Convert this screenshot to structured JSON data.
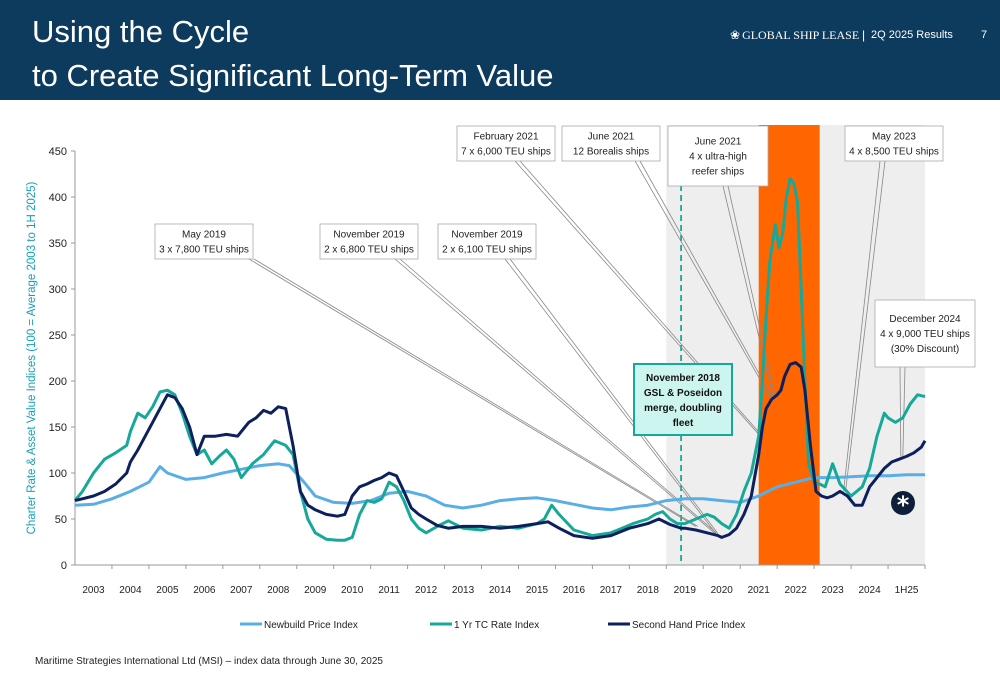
{
  "header": {
    "title_line1": "Using the Cycle",
    "title_line2": "to Create Significant Long-Term Value",
    "brand": "GLOBAL SHIP LEASE",
    "brand_icon": "ship-lease-logo-icon",
    "separator": "|",
    "results_label": "2Q 2025 Results",
    "page_number": "7"
  },
  "colors": {
    "header_bg": "#0d3b5e",
    "newbuild": "#5aaee6",
    "tc_rate": "#16a898",
    "second_hand": "#0d1f5c",
    "highlight": "#ff6600",
    "shade": "#eeeeee",
    "merger_box": "#ccf5ef",
    "merger_border": "#16a898"
  },
  "chart_data": {
    "type": "line",
    "ylabel": "Charter Rate & Asset Value Indices (100 = Average 2003 to 1H 2025)",
    "ylim": [
      0,
      450
    ],
    "yticks": [
      0,
      50,
      100,
      150,
      200,
      250,
      300,
      350,
      400,
      450
    ],
    "xlim": [
      2002.5,
      2025.5
    ],
    "xtick_labels": [
      "2003",
      "2004",
      "2005",
      "2006",
      "2007",
      "2008",
      "2009",
      "2010",
      "2011",
      "2012",
      "2013",
      "2014",
      "2015",
      "2016",
      "2017",
      "2018",
      "2019",
      "2020",
      "2021",
      "2022",
      "2023",
      "2024",
      "1H25"
    ],
    "shaded_region": [
      2018.5,
      2025.5
    ],
    "highlight_region": [
      2021.0,
      2022.65
    ],
    "merger_date": 2018.9,
    "series": [
      {
        "name": "Newbuild Price Index",
        "x": [
          2002.5,
          2003,
          2003.5,
          2004,
          2004.5,
          2004.8,
          2005,
          2005.5,
          2006,
          2006.5,
          2007,
          2007.5,
          2008,
          2008.3,
          2008.7,
          2009,
          2009.5,
          2010,
          2010.5,
          2011,
          2011.5,
          2012,
          2012.5,
          2013,
          2013.5,
          2014,
          2014.5,
          2015,
          2015.5,
          2016,
          2016.5,
          2017,
          2017.5,
          2018,
          2018.5,
          2019,
          2019.5,
          2020,
          2020.5,
          2021,
          2021.5,
          2022,
          2022.5,
          2023,
          2023.5,
          2024,
          2024.5,
          2025,
          2025.5
        ],
        "y": [
          65,
          66,
          72,
          80,
          90,
          107,
          100,
          93,
          95,
          100,
          104,
          108,
          110,
          108,
          90,
          75,
          68,
          67,
          70,
          78,
          80,
          75,
          65,
          62,
          65,
          70,
          72,
          73,
          70,
          66,
          62,
          60,
          63,
          65,
          70,
          72,
          72,
          70,
          68,
          75,
          85,
          90,
          95,
          95,
          96,
          97,
          97,
          98,
          98
        ]
      },
      {
        "name": "1 Yr TC Rate Index",
        "x": [
          2002.5,
          2002.7,
          2003,
          2003.3,
          2003.6,
          2003.9,
          2004,
          2004.2,
          2004.4,
          2004.6,
          2004.8,
          2005,
          2005.2,
          2005.4,
          2005.6,
          2005.8,
          2006,
          2006.2,
          2006.4,
          2006.6,
          2006.8,
          2007,
          2007.3,
          2007.6,
          2007.9,
          2008.2,
          2008.4,
          2008.6,
          2008.8,
          2009,
          2009.3,
          2009.6,
          2009.8,
          2010,
          2010.2,
          2010.4,
          2010.6,
          2010.8,
          2011,
          2011.2,
          2011.4,
          2011.6,
          2011.8,
          2012,
          2012.3,
          2012.6,
          2013,
          2013.5,
          2014,
          2014.5,
          2015,
          2015.2,
          2015.4,
          2015.6,
          2016,
          2016.5,
          2017,
          2017.3,
          2017.6,
          2018,
          2018.2,
          2018.4,
          2018.6,
          2018.8,
          2019,
          2019.3,
          2019.6,
          2019.8,
          2020,
          2020.2,
          2020.4,
          2020.6,
          2020.8,
          2021,
          2021.1,
          2021.2,
          2021.3,
          2021.45,
          2021.55,
          2021.65,
          2021.75,
          2021.85,
          2021.95,
          2022.05,
          2022.15,
          2022.25,
          2022.35,
          2022.5,
          2022.65,
          2022.8,
          2023,
          2023.2,
          2023.5,
          2023.8,
          2024,
          2024.2,
          2024.4,
          2024.5,
          2024.7,
          2024.9,
          2025.1,
          2025.3,
          2025.5
        ],
        "y": [
          70,
          80,
          100,
          115,
          122,
          130,
          145,
          165,
          160,
          172,
          188,
          190,
          185,
          165,
          140,
          120,
          125,
          110,
          118,
          125,
          115,
          95,
          110,
          120,
          135,
          130,
          120,
          80,
          50,
          35,
          28,
          27,
          27,
          30,
          55,
          70,
          68,
          72,
          90,
          85,
          70,
          50,
          40,
          35,
          42,
          48,
          40,
          38,
          42,
          40,
          45,
          50,
          65,
          55,
          38,
          32,
          35,
          40,
          45,
          50,
          55,
          58,
          50,
          45,
          45,
          50,
          55,
          52,
          45,
          40,
          55,
          80,
          100,
          140,
          200,
          270,
          330,
          370,
          345,
          360,
          400,
          420,
          415,
          395,
          300,
          200,
          110,
          90,
          88,
          85,
          110,
          88,
          75,
          85,
          105,
          140,
          165,
          160,
          155,
          160,
          175,
          185,
          183
        ]
      },
      {
        "name": "Second Hand Price Index",
        "x": [
          2002.5,
          2002.7,
          2003,
          2003.3,
          2003.6,
          2003.9,
          2004,
          2004.2,
          2004.4,
          2004.6,
          2004.8,
          2005,
          2005.2,
          2005.4,
          2005.6,
          2005.8,
          2006,
          2006.3,
          2006.6,
          2006.9,
          2007,
          2007.2,
          2007.4,
          2007.6,
          2007.8,
          2008,
          2008.2,
          2008.4,
          2008.6,
          2008.8,
          2009,
          2009.3,
          2009.6,
          2009.8,
          2010,
          2010.2,
          2010.4,
          2010.6,
          2010.8,
          2011,
          2011.2,
          2011.4,
          2011.6,
          2011.8,
          2012,
          2012.3,
          2012.6,
          2013,
          2013.5,
          2014,
          2014.5,
          2015,
          2015.3,
          2015.6,
          2016,
          2016.5,
          2017,
          2017.5,
          2018,
          2018.3,
          2018.6,
          2018.9,
          2019,
          2019.3,
          2019.6,
          2019.9,
          2020,
          2020.2,
          2020.4,
          2020.6,
          2020.8,
          2021,
          2021.1,
          2021.2,
          2021.35,
          2021.5,
          2021.6,
          2021.7,
          2021.85,
          2022,
          2022.15,
          2022.25,
          2022.4,
          2022.55,
          2022.7,
          2022.85,
          2023,
          2023.2,
          2023.4,
          2023.6,
          2023.8,
          2024,
          2024.2,
          2024.4,
          2024.6,
          2024.8,
          2025,
          2025.2,
          2025.4,
          2025.5
        ],
        "y": [
          70,
          72,
          75,
          80,
          88,
          100,
          112,
          125,
          140,
          155,
          170,
          185,
          182,
          170,
          150,
          120,
          140,
          140,
          142,
          140,
          145,
          155,
          160,
          168,
          165,
          172,
          170,
          130,
          80,
          65,
          60,
          55,
          53,
          55,
          75,
          85,
          88,
          92,
          95,
          100,
          97,
          80,
          62,
          55,
          50,
          43,
          40,
          42,
          42,
          40,
          42,
          45,
          47,
          40,
          32,
          29,
          32,
          40,
          45,
          50,
          44,
          40,
          40,
          38,
          35,
          32,
          30,
          33,
          40,
          55,
          75,
          120,
          150,
          170,
          180,
          185,
          190,
          205,
          218,
          220,
          215,
          190,
          130,
          80,
          75,
          73,
          75,
          80,
          75,
          65,
          65,
          85,
          95,
          105,
          112,
          115,
          118,
          122,
          128,
          135
        ]
      }
    ],
    "legend": {
      "position": "bottom",
      "items": [
        "Newbuild Price Index",
        "1 Yr TC Rate Index",
        "Second Hand Price Index"
      ]
    },
    "annotations": [
      {
        "lines": [
          "May 2019",
          "3 x 7,800 TEU ships"
        ],
        "target_x": 2019.35,
        "target_y": 42
      },
      {
        "lines": [
          "November 2019",
          "2 x 6,800 TEU ships"
        ],
        "target_x": 2019.85,
        "target_y": 35
      },
      {
        "lines": [
          "November 2019",
          "2 x 6,100 TEU ships"
        ],
        "target_x": 2019.9,
        "target_y": 34
      },
      {
        "lines": [
          "February 2021",
          "7 x 6,000 TEU ships"
        ],
        "target_x": 2021.1,
        "target_y": 140
      },
      {
        "lines": [
          "June 2021",
          "12 Borealis ships"
        ],
        "target_x": 2021.4,
        "target_y": 180
      },
      {
        "lines": [
          "June 2021",
          "4 x ultra-high",
          "reefer ships"
        ],
        "target_x": 2021.45,
        "target_y": 182
      },
      {
        "lines": [
          "May 2023",
          "4 x 8,500 TEU ships"
        ],
        "target_x": 2023.35,
        "target_y": 80
      },
      {
        "lines": [
          "December 2024",
          "4 x 9,000 TEU ships",
          "(30% Discount)"
        ],
        "target_x": 2024.9,
        "target_y": 118
      }
    ],
    "merger_box": {
      "lines": [
        "November 2018",
        "GSL & Poseidon",
        "merge, doubling",
        "fleet"
      ]
    },
    "asterisk": "*"
  },
  "footer": {
    "source": "Maritime Strategies International Ltd (MSI) – index data through June 30, 2025"
  }
}
